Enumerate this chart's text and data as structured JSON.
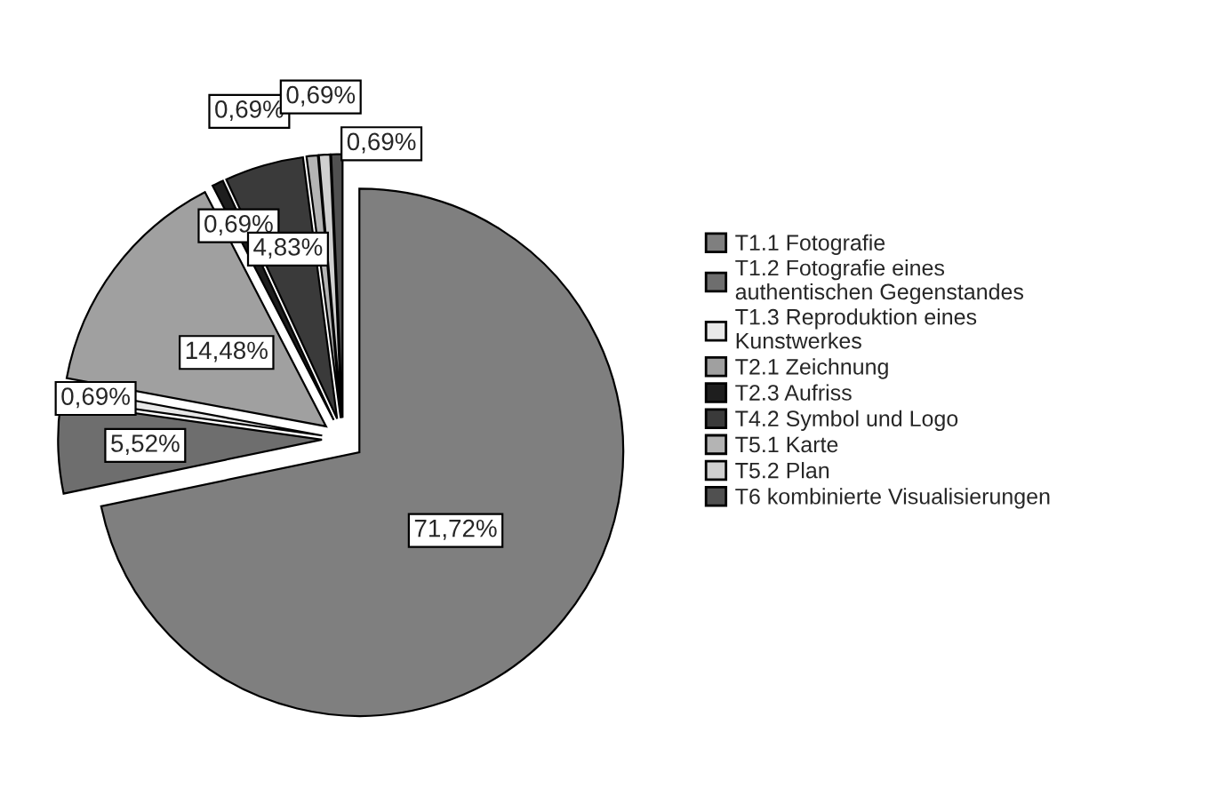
{
  "chart_data": {
    "type": "pie",
    "categories": [
      "T1.1 Fotografie",
      "T1.2 Fotografie eines authentischen Gegenstandes",
      "T1.3 Reproduktion eines Kunstwerkes",
      "T2.1 Zeichnung",
      "T2.3 Aufriss",
      "T4.2 Symbol und Logo",
      "T5.1 Karte",
      "T5.2 Plan",
      "T6 kombinierte Visualisierungen"
    ],
    "values": [
      71.72,
      5.52,
      0.69,
      14.48,
      0.69,
      4.83,
      0.69,
      0.69,
      0.69
    ],
    "value_labels": [
      "71,72%",
      "5,52%",
      "0,69%",
      "14,48%",
      "0,69%",
      "4,83%",
      "0,69%",
      "0,69%",
      "0,69%"
    ],
    "colors": [
      "#7f7f7f",
      "#6e6e6e",
      "#e8e8e8",
      "#a0a0a0",
      "#1e1e1e",
      "#3a3a3a",
      "#b4b4b4",
      "#d0d0d0",
      "#505050"
    ],
    "legend": "right"
  }
}
